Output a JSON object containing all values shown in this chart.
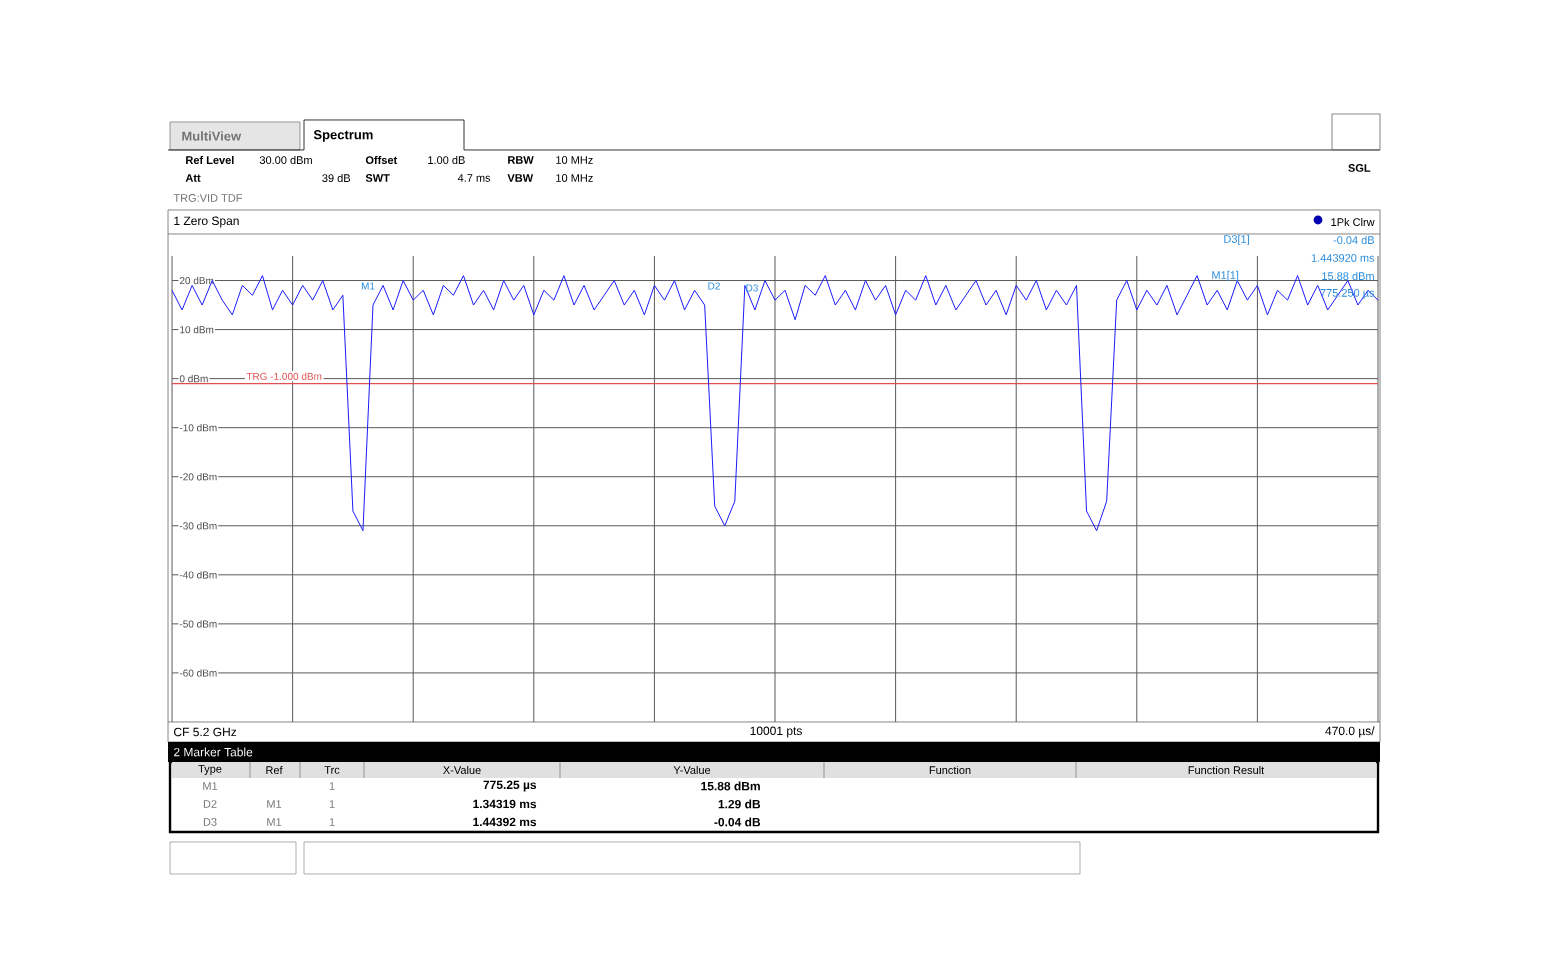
{
  "chart_data": {
    "type": "line",
    "categories": [
      null,
      null,
      null,
      null,
      null,
      null,
      null,
      null,
      null,
      null,
      null,
      null,
      null,
      null,
      null,
      null,
      null,
      null,
      null,
      null,
      null,
      null,
      null,
      null,
      null,
      null,
      null,
      null,
      null,
      null,
      null,
      null,
      null,
      null,
      null,
      null,
      null,
      null,
      null,
      null,
      null,
      null,
      null,
      null,
      null,
      null,
      null,
      null,
      null,
      null,
      null,
      null,
      null,
      null,
      null,
      null,
      null,
      null,
      null,
      null,
      null,
      null,
      null,
      null,
      null,
      null,
      null,
      null,
      null,
      null,
      null,
      null,
      null,
      null,
      null,
      null,
      null,
      null,
      null,
      null,
      null,
      null,
      null,
      null,
      null,
      null,
      null,
      null,
      null,
      null,
      null,
      null,
      null,
      null,
      null,
      null,
      null,
      null,
      null,
      null,
      null,
      null,
      null,
      null,
      null,
      null,
      null,
      null,
      null,
      null,
      null,
      null,
      null,
      null,
      null,
      null,
      null,
      null,
      null,
      null,
      null
    ],
    "series": [
      {
        "color": "#1a1aff",
        "values": [
          18,
          14,
          19,
          15,
          20,
          16,
          13,
          19,
          17,
          21,
          14,
          18,
          15,
          19,
          16,
          20,
          14,
          17,
          -27,
          -31,
          15,
          19,
          14,
          20,
          16,
          18,
          13,
          19,
          17,
          21,
          15,
          18,
          14,
          20,
          16,
          19,
          13,
          18,
          16,
          21,
          15,
          19,
          14,
          17,
          20,
          15,
          18,
          13,
          19,
          16,
          20,
          14,
          18,
          15,
          -26,
          -30,
          -25,
          19,
          14,
          20,
          16,
          18,
          12,
          19,
          17,
          21,
          15,
          18,
          14,
          20,
          16,
          19,
          13,
          18,
          16,
          21,
          15,
          19,
          14,
          17,
          20,
          15,
          18,
          13,
          19,
          16,
          20,
          14,
          18,
          15,
          19,
          -27,
          -31,
          -25,
          16,
          20,
          14,
          18,
          15,
          19,
          13,
          17,
          21,
          15,
          18,
          14,
          20,
          16,
          19,
          13,
          18,
          16,
          21,
          15,
          19,
          14,
          17,
          20,
          15,
          18,
          16
        ]
      }
    ],
    "ylim": [
      -70,
      25
    ],
    "yticks": [
      {
        "value": 20,
        "label": "20 dBm"
      },
      {
        "value": 10,
        "label": "10 dBm"
      },
      {
        "value": 0,
        "label": "0 dBm"
      },
      {
        "value": -10,
        "label": "-10 dBm"
      },
      {
        "value": -20,
        "label": "-20 dBm"
      },
      {
        "value": -30,
        "label": "-30 dBm"
      },
      {
        "value": -40,
        "label": "-40 dBm"
      },
      {
        "value": -50,
        "label": "-50 dBm"
      },
      {
        "value": -60,
        "label": "-60 dBm"
      }
    ],
    "grid": true,
    "tick_labels": "y",
    "line_style": "solid",
    "marker": "none",
    "ref_lines": [
      {
        "axis": "y",
        "value": -1,
        "label": "TRG -1.000 dBm",
        "color": "#e05050"
      }
    ],
    "annotations": [
      "MultiView",
      "Spectrum",
      "Ref Level",
      "30.00 dBm",
      "Offset",
      "1.00 dB",
      "RBW",
      "10 MHz",
      "Att",
      "39 dB",
      "SWT",
      "4.7 ms",
      "VBW",
      "10 MHz",
      "SGL",
      "TRG:VID TDF",
      "1 Zero Span",
      "1Pk Clrw",
      "D3[1]",
      "-0.04 dB",
      "1.443920 ms",
      "M1[1]",
      "15.88 dBm",
      "775.250 µs",
      "CF 5.2 GHz",
      "10001 pts",
      "470.0 µs/",
      "2 Marker Table",
      "Type",
      "Ref",
      "Trc",
      "X-Value",
      "Y-Value",
      "Function",
      "Function Result",
      "M1",
      "1",
      "775.25 µs",
      "15.88 dBm",
      "D2",
      "M1",
      "1",
      "1.34319 ms",
      "1.29 dB",
      "D3",
      "M1",
      "1",
      "1.44392 ms",
      "-0.04 dB",
      "M1",
      "D2",
      "D3"
    ]
  }
}
